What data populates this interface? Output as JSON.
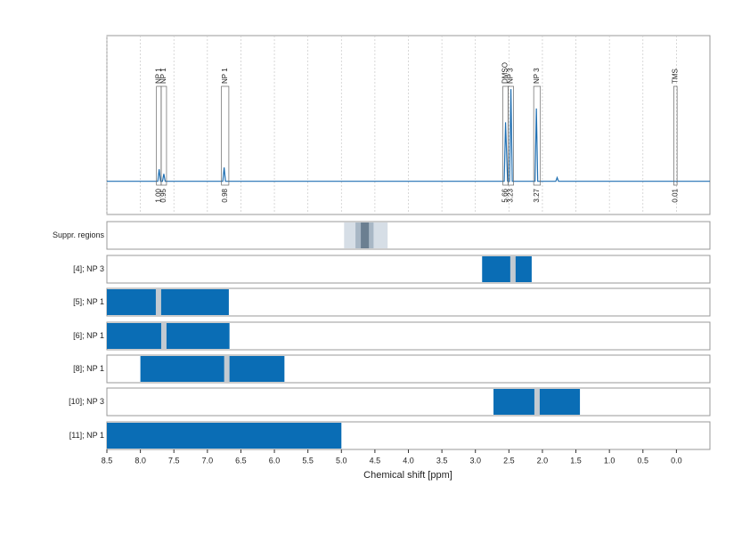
{
  "chart_data": {
    "type": "nmr",
    "xlabel": "Chemical shift [ppm]",
    "xlim": [
      8.5,
      -0.5
    ],
    "xticks": [
      8.5,
      {
        "value": 8,
        "label": "8.0"
      },
      7.5,
      {
        "value": 7,
        "label": "7.0"
      },
      6.5,
      {
        "value": 6,
        "label": "6.0"
      },
      5.5,
      {
        "value": 5,
        "label": "5.0"
      },
      4.5,
      {
        "value": 4,
        "label": "4.0"
      },
      3.5,
      {
        "value": 3,
        "label": "3.0"
      },
      2.5,
      {
        "value": 2,
        "label": "2.0"
      },
      1.5,
      {
        "value": 1,
        "label": "1.0"
      },
      0.5,
      {
        "value": 0,
        "label": "0.0"
      }
    ],
    "grid": true,
    "ylim": [
      -0.36,
      1.58
    ],
    "spectrum": {
      "color": "#1f6fb2",
      "x": [
        8.5,
        7.74,
        7.72,
        7.7,
        7.67,
        7.65,
        7.63,
        6.77,
        6.75,
        6.73,
        2.57,
        2.55,
        2.52,
        2.49,
        2.47,
        2.45,
        2.11,
        2.09,
        2.07,
        1.8,
        1.78,
        1.76,
        -0.5
      ],
      "y": [
        0,
        0,
        0.13,
        0,
        0,
        0.08,
        0,
        0,
        0.15,
        0,
        0,
        0.64,
        0,
        0,
        1,
        0,
        0,
        0.79,
        0,
        0,
        0.04,
        0,
        0
      ]
    },
    "integral_color": "#e8232a",
    "peaks": [
      {
        "label": "NP 1",
        "range": [
          7.76,
          7.69
        ],
        "integral": 1,
        "integral_label": "1.00"
      },
      {
        "label": "NP 1",
        "range": [
          7.69,
          7.61
        ],
        "integral": 0.95,
        "integral_label": "0.95"
      },
      {
        "label": "NP 1",
        "range": [
          6.79,
          6.68
        ],
        "integral": 0.98,
        "integral_label": "0.98"
      },
      {
        "label": "DMSO",
        "range": [
          2.59,
          2.51
        ],
        "integral": 5.66,
        "integral_label": "5.66"
      },
      {
        "label": "NP 3",
        "range": [
          2.51,
          2.43
        ],
        "integral": 3.23,
        "integral_label": "3.23"
      },
      {
        "label": "NP 3",
        "range": [
          2.13,
          2.03
        ],
        "integral": 3.27,
        "integral_label": "3.27"
      },
      {
        "label": "TMS",
        "range": [
          0.04,
          -0.01
        ],
        "integral": 0.01,
        "integral_label": "0.01"
      }
    ],
    "suppression": {
      "label": "Suppr. regions",
      "bands": [
        [
          4.96,
          4.31
        ],
        [
          4.79,
          4.52
        ],
        [
          4.71,
          4.59
        ]
      ],
      "colors": [
        "#d6dee6",
        "#a8b7c5",
        "#6b7f91"
      ]
    },
    "region_color": "#0a6db5",
    "marker_color": "#c3cad1",
    "rows": [
      {
        "label": "[4]; NP 3",
        "range": [
          2.9,
          2.16
        ],
        "marker": 2.44
      },
      {
        "label": "[5]; NP 1",
        "range": [
          8.5,
          6.68
        ],
        "marker": 7.73
      },
      {
        "label": "[6]; NP 1",
        "range": [
          8.5,
          6.67
        ],
        "marker": 7.65
      },
      {
        "label": "[8]; NP 1",
        "range": [
          8.0,
          5.85
        ],
        "marker": 6.71
      },
      {
        "label": "[10]; NP 3",
        "range": [
          2.73,
          1.44
        ],
        "marker": 2.08
      },
      {
        "label": "[11]; NP 1",
        "range": [
          8.5,
          5.0
        ],
        "marker": null
      }
    ]
  }
}
